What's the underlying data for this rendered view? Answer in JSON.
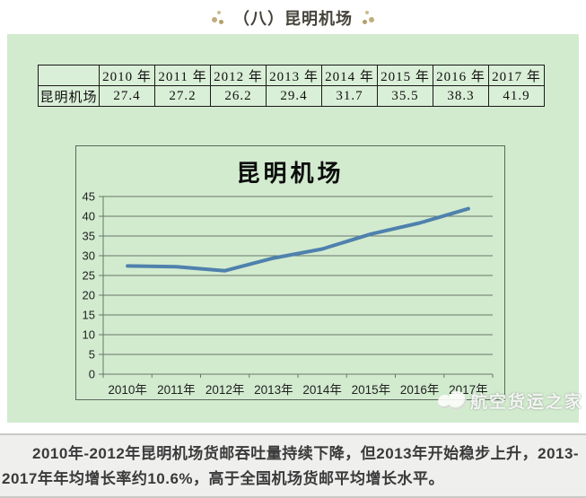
{
  "header": {
    "title": "（八）昆明机场"
  },
  "icons": {
    "title_ornament": "three-dot-cluster",
    "watermark_logo": "cloud-double-circle"
  },
  "table": {
    "corner_label": "",
    "columns": [
      "2010 年",
      "2011 年",
      "2012 年",
      "2013 年",
      "2014 年",
      "2015 年",
      "2016 年",
      "2017 年"
    ],
    "row_label": "昆明机场",
    "values": [
      "27.4",
      "27.2",
      "26.2",
      "29.4",
      "31.7",
      "35.5",
      "38.3",
      "41.9"
    ]
  },
  "chart_data": {
    "type": "line",
    "title": "昆明机场",
    "categories": [
      "2010年",
      "2011年",
      "2012年",
      "2013年",
      "2014年",
      "2015年",
      "2016年",
      "2017年"
    ],
    "values": [
      27.4,
      27.2,
      26.2,
      29.4,
      31.7,
      35.5,
      38.3,
      41.9
    ],
    "xlabel": "",
    "ylabel": "",
    "ylim": [
      0,
      45
    ],
    "ytick_step": 5,
    "grid": true,
    "legend": "none",
    "line_color": "#4f81ad",
    "grid_color": "#6a766a",
    "tick_label_color": "#1f1f1f"
  },
  "watermark": {
    "text": "航空货运之家"
  },
  "footer": {
    "text": "2010年-2012年昆明机场货邮吞吐量持续下降，但2013年开始稳步上升，2013-2017年年均增长率约10.6%，高于全国机场货邮平均增长水平。"
  },
  "colors": {
    "panel_green": "#d2ebcf",
    "table_cell_green": "#daefd7",
    "footer_gray": "#efefee",
    "ornament_tan": "#bfae7c",
    "line_blue": "#4f81ad"
  }
}
